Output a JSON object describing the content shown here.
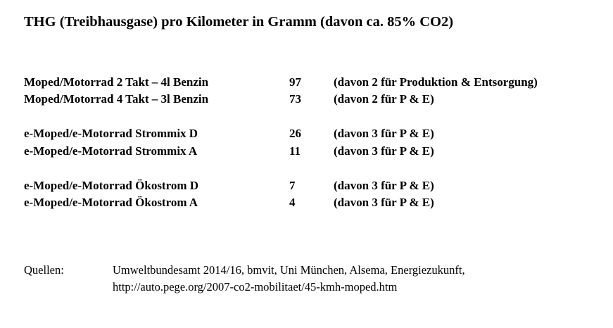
{
  "title": "THG (Treibhausgase) pro Kilometer in Gramm (davon ca. 85% CO2)",
  "rows": [
    {
      "label": "Moped/Motorrad 2 Takt – 4l Benzin",
      "value": "97",
      "note": "(davon 2  für Produktion & Entsorgung)"
    },
    {
      "label": "Moped/Motorrad 4 Takt – 3l Benzin",
      "value": "73",
      "note": "(davon 2  für P & E)"
    },
    {
      "label": "e-Moped/e-Motorrad Strommix D",
      "value": "26",
      "note": "(davon 3  für P & E)"
    },
    {
      "label": "e-Moped/e-Motorrad Strommix A",
      "value": "11",
      "note": "(davon 3  für P & E)"
    },
    {
      "label": "e-Moped/e-Motorrad Ökostrom D",
      "value": "7",
      "note": "(davon 3  für P & E)"
    },
    {
      "label": "e-Moped/e-Motorrad Ökostrom A",
      "value": "4",
      "note": "(davon 3  für P & E)"
    }
  ],
  "sources": {
    "label": "Quellen:",
    "line1": "Umweltbundesamt 2014/16, bmvit, Uni München, Alsema, Energiezukunft,",
    "line2": "http://auto.pege.org/2007-co2-mobilitaet/45-kmh-moped.htm"
  }
}
